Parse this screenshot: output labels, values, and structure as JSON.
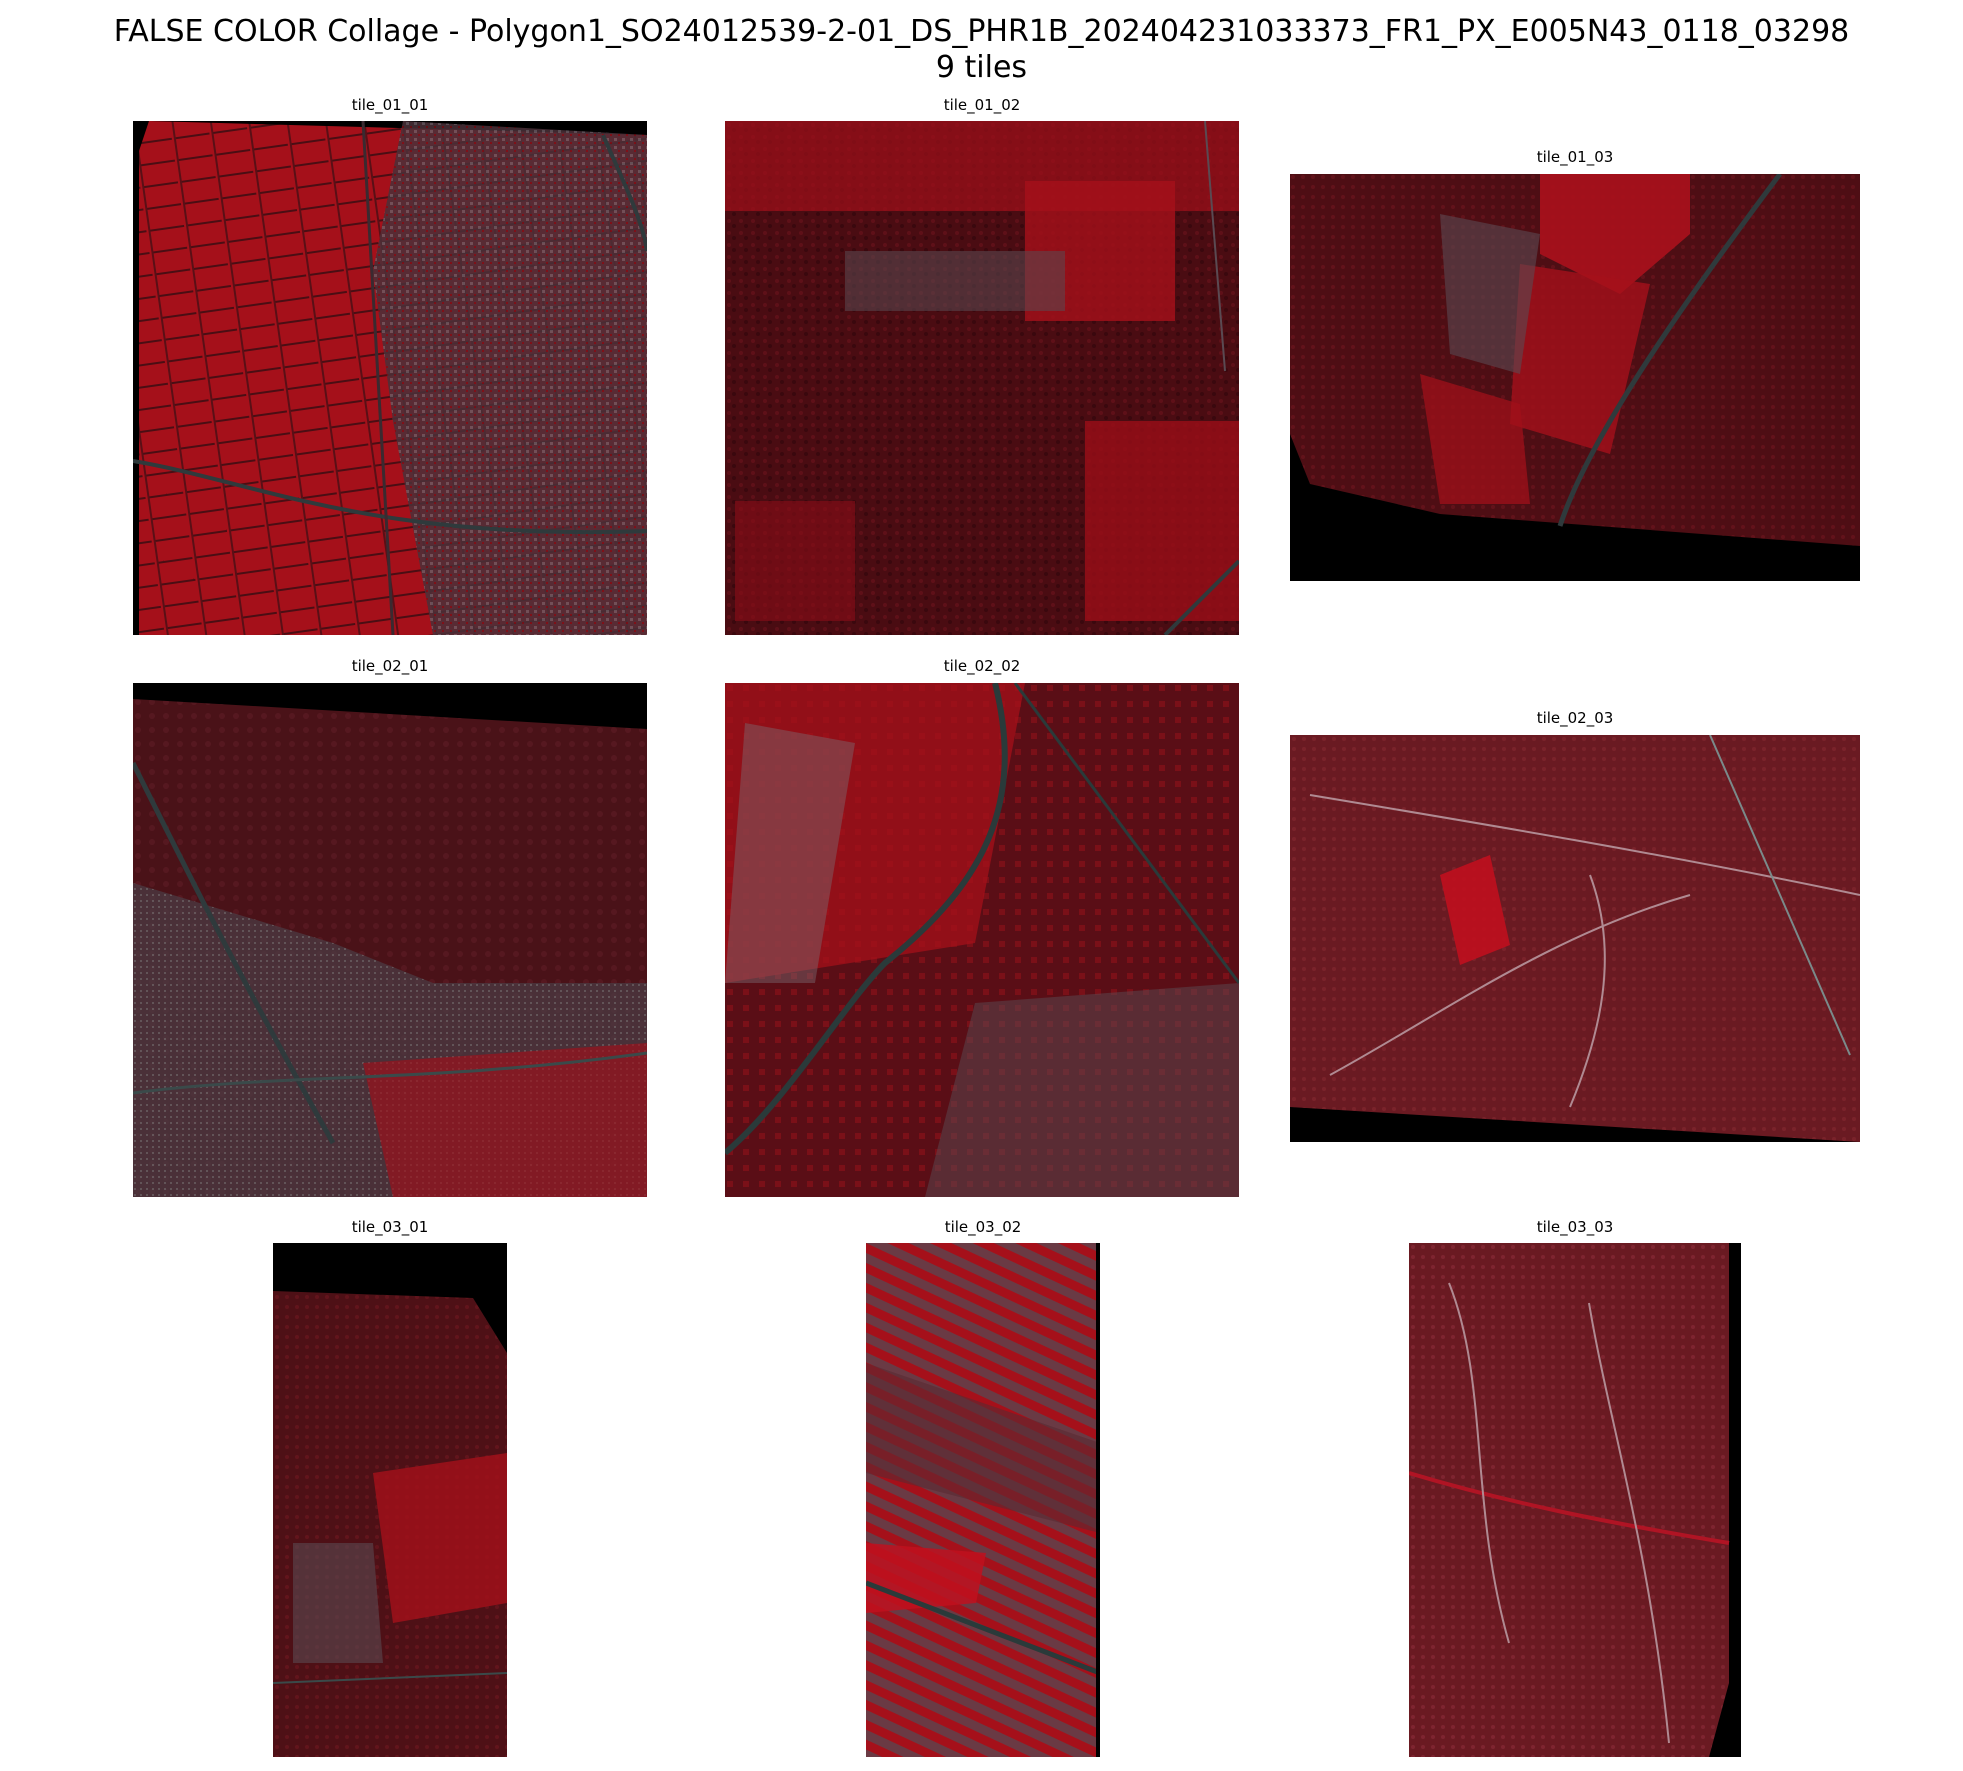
{
  "figure": {
    "title_line1": "FALSE COLOR Collage - Polygon1_SO24012539-2-01_DS_PHR1B_202404231033373_FR1_PX_E005N43_0118_03298",
    "title_line2": "9 tiles"
  },
  "tiles": [
    {
      "label": "tile_01_01"
    },
    {
      "label": "tile_01_02"
    },
    {
      "label": "tile_01_03"
    },
    {
      "label": "tile_02_01"
    },
    {
      "label": "tile_02_02"
    },
    {
      "label": "tile_02_03"
    },
    {
      "label": "tile_03_01"
    },
    {
      "label": "tile_03_02"
    },
    {
      "label": "tile_03_03"
    }
  ],
  "colors": {
    "nodata": "#000000",
    "vegetation_bright": "#b0101c",
    "vegetation_dark": "#4a0c12",
    "urban": "#5a4a52",
    "road": "#2a3a3a"
  }
}
